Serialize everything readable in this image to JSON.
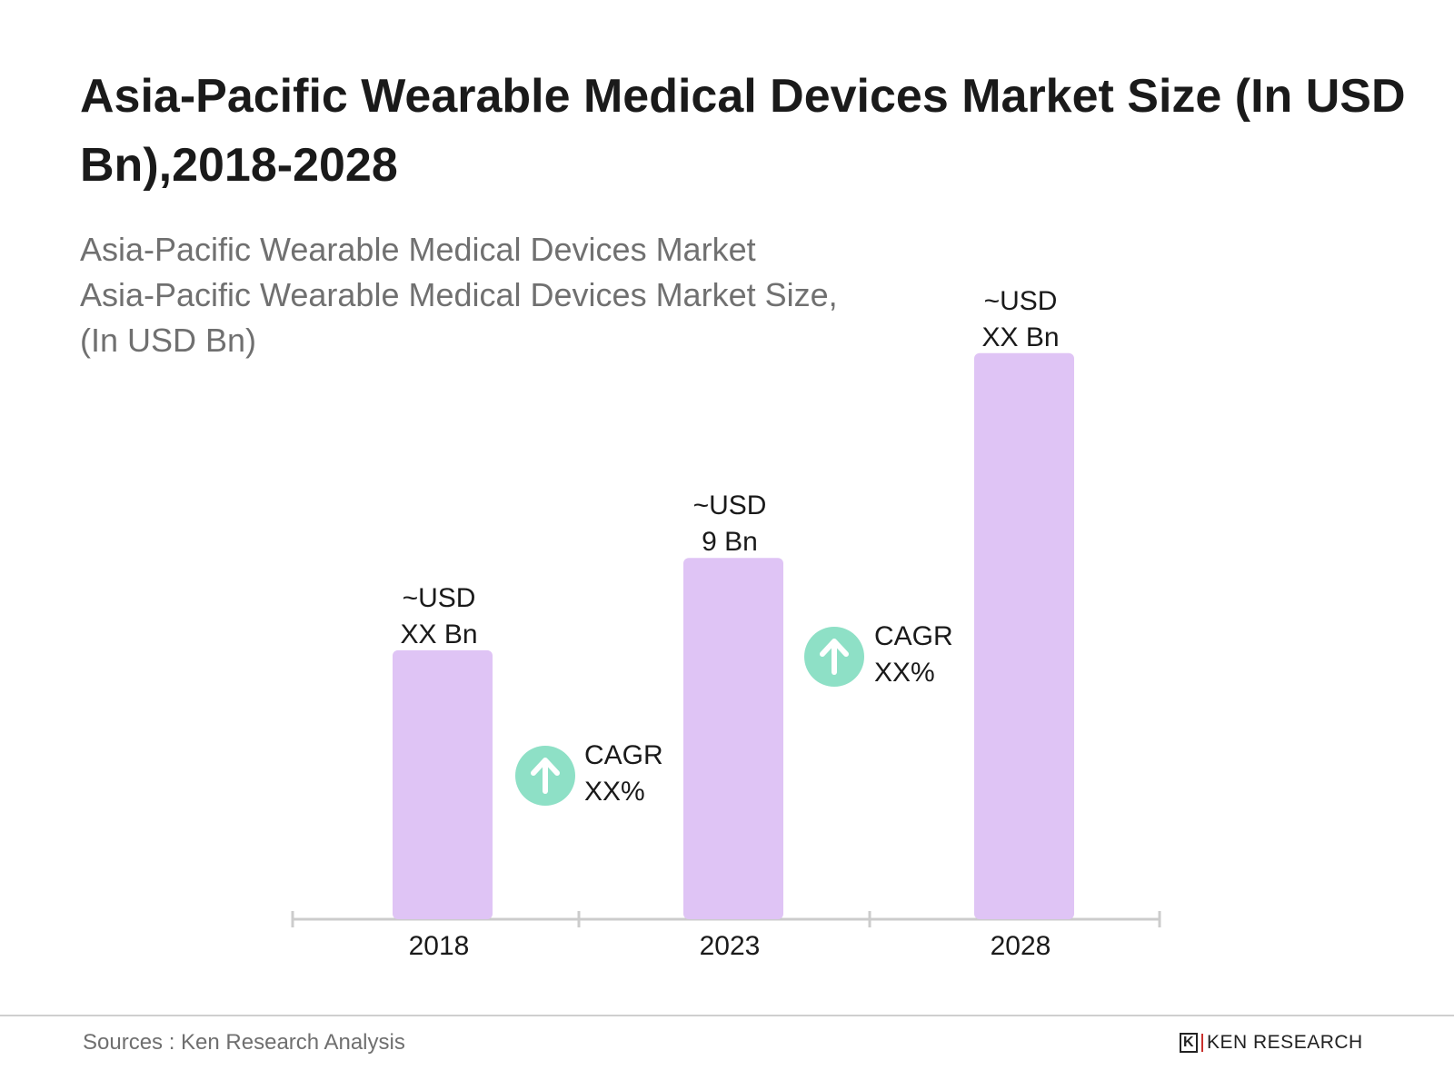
{
  "title": "Asia-Pacific Wearable Medical Devices Market Size (In USD Bn),2018-2028",
  "subtitle_lines": [
    "Asia-Pacific Wearable Medical Devices Market",
    "Asia-Pacific Wearable Medical Devices Market Size,",
    "(In USD Bn)"
  ],
  "footer": {
    "sources": "Sources : Ken Research Analysis",
    "logo_text": "KEN RESEARCH"
  },
  "colors": {
    "bar": "#dfc4f5",
    "cagr_circle": "#8ee0c6",
    "axis": "#cccccc"
  },
  "chart_data": {
    "type": "bar",
    "categories": [
      "2018",
      "2023",
      "2028"
    ],
    "values": [
      6.7,
      9,
      14.1
    ],
    "value_labels": [
      [
        "~USD",
        "XX Bn"
      ],
      [
        "~USD",
        "9 Bn"
      ],
      [
        "~USD",
        "XX Bn"
      ]
    ],
    "annotations": [
      {
        "icon": "arrow-up-icon",
        "lines": [
          "CAGR",
          "XX%"
        ],
        "between": [
          "2018",
          "2023"
        ]
      },
      {
        "icon": "arrow-up-icon",
        "lines": [
          "CAGR",
          "XX%"
        ],
        "between": [
          "2023",
          "2028"
        ]
      }
    ],
    "ylabel": "",
    "xlabel": "",
    "grid": false
  }
}
